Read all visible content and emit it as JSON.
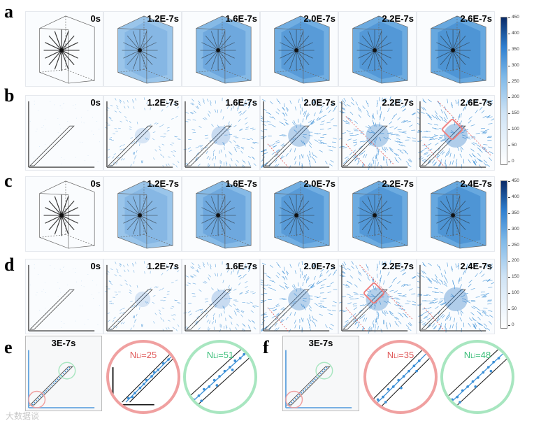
{
  "figure": {
    "panel_labels": [
      "a",
      "b",
      "c",
      "d",
      "e",
      "f"
    ],
    "row_a_times": [
      "0s",
      "1.2E-7s",
      "1.6E-7s",
      "2.0E-7s",
      "2.2E-7s",
      "2.6E-7s"
    ],
    "row_b_times": [
      "0s",
      "1.2E-7s",
      "1.6E-7s",
      "2.0E-7s",
      "2.2E-7s",
      "2.6E-7s"
    ],
    "row_c_times": [
      "0s",
      "1.2E-7s",
      "1.6E-7s",
      "2.0E-7s",
      "2.2E-7s",
      "2.4E-7s"
    ],
    "row_d_times": [
      "0s",
      "1.2E-7s",
      "1.6E-7s",
      "2.0E-7s",
      "2.2E-7s",
      "2.4E-7s"
    ],
    "colorbar_ticks": [
      "450",
      "400",
      "350",
      "300",
      "250",
      "200",
      "150",
      "100",
      "50",
      "0"
    ],
    "panel_e": {
      "time": "3E-7s",
      "red_label": "N",
      "red_sub": "Li",
      "red_value": "=25",
      "green_label": "N",
      "green_sub": "Li",
      "green_value": "=51"
    },
    "panel_f": {
      "time": "3E-7s",
      "red_label": "N",
      "red_sub": "Li",
      "red_value": "=35",
      "green_label": "N",
      "green_sub": "Li",
      "green_value": "=48"
    },
    "watermark": "大数据谈",
    "colors": {
      "blue": "#3b8fd6",
      "dark_blue": "#0a2a66",
      "red_circle": "#f0a0a0",
      "green_circle": "#a8e6c0",
      "red_text": "#e05a5a",
      "green_text": "#3cbf7a"
    }
  }
}
